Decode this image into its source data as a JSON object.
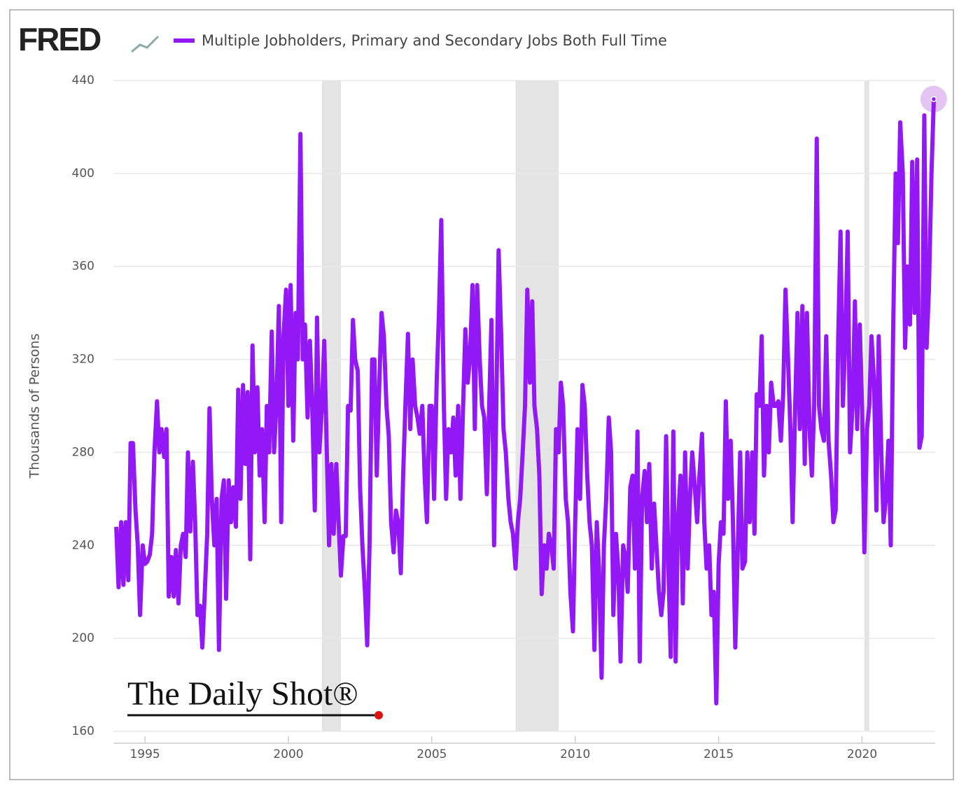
{
  "chart_data": {
    "type": "line",
    "logo": "FRED",
    "series": [
      {
        "name": "Multiple Jobholders, Primary and Secondary Jobs Both Full Time",
        "color": "#9218f5",
        "values": [
          248,
          222,
          250,
          223,
          250,
          225,
          284,
          284,
          255,
          240,
          210,
          240,
          232,
          233,
          236,
          245,
          280,
          302,
          280,
          290,
          278,
          290,
          218,
          235,
          218,
          238,
          215,
          240,
          245,
          235,
          280,
          246,
          276,
          250,
          210,
          214,
          196,
          218,
          245,
          299,
          260,
          240,
          260,
          195,
          260,
          268,
          217,
          268,
          250,
          265,
          248,
          307,
          260,
          309,
          275,
          306,
          234,
          326,
          280,
          308,
          270,
          290,
          250,
          300,
          280,
          332,
          280,
          300,
          343,
          250,
          330,
          350,
          300,
          352,
          285,
          340,
          320,
          417,
          320,
          335,
          295,
          328,
          300,
          255,
          338,
          280,
          300,
          328,
          285,
          240,
          275,
          245,
          275,
          250,
          227,
          244,
          244,
          300,
          298,
          337,
          320,
          315,
          265,
          240,
          220,
          197,
          240,
          320,
          320,
          270,
          310,
          340,
          330,
          300,
          287,
          250,
          237,
          255,
          250,
          228,
          270,
          300,
          331,
          290,
          320,
          300,
          295,
          288,
          300,
          270,
          250,
          300,
          300,
          260,
          310,
          340,
          380,
          300,
          260,
          290,
          280,
          295,
          270,
          300,
          260,
          295,
          333,
          310,
          320,
          352,
          290,
          352,
          320,
          300,
          295,
          262,
          300,
          337,
          240,
          300,
          367,
          330,
          290,
          280,
          260,
          250,
          245,
          230,
          250,
          260,
          280,
          300,
          350,
          310,
          345,
          300,
          290,
          270,
          219,
          240,
          230,
          245,
          240,
          230,
          290,
          280,
          310,
          300,
          260,
          250,
          220,
          203,
          250,
          290,
          260,
          309,
          300,
          270,
          250,
          240,
          195,
          250,
          230,
          183,
          240,
          260,
          295,
          280,
          210,
          245,
          230,
          190,
          240,
          235,
          220,
          265,
          270,
          230,
          289,
          190,
          260,
          272,
          250,
          275,
          230,
          258,
          240,
          220,
          210,
          220,
          287,
          230,
          192,
          289,
          190,
          250,
          270,
          215,
          280,
          230,
          260,
          280,
          265,
          250,
          270,
          288,
          250,
          230,
          240,
          210,
          220,
          172,
          232,
          250,
          245,
          302,
          260,
          285,
          250,
          196,
          240,
          280,
          230,
          233,
          280,
          250,
          280,
          245,
          305,
          300,
          330,
          270,
          300,
          280,
          310,
          300,
          300,
          302,
          285,
          305,
          350,
          320,
          290,
          250,
          300,
          340,
          290,
          343,
          275,
          340,
          290,
          270,
          300,
          415,
          300,
          290,
          285,
          330,
          285,
          270,
          250,
          255,
          330,
          375,
          300,
          330,
          375,
          280,
          300,
          345,
          290,
          335,
          300,
          237,
          290,
          300,
          330,
          310,
          255,
          330,
          280,
          250,
          260,
          285,
          240,
          330,
          400,
          370,
          422,
          400,
          325,
          360,
          335,
          405,
          340,
          406,
          282,
          287,
          425,
          325,
          350,
          400,
          432
        ]
      }
    ],
    "x": [
      1994,
      1994.08,
      1994.17,
      1994.25,
      1994.33,
      1994.42,
      1994.5,
      1994.58,
      1994.67,
      1994.75,
      1994.83,
      1994.92,
      1995,
      1995.08,
      1995.17,
      1995.25,
      1995.33,
      1995.42,
      1995.5,
      1995.58,
      1995.67,
      1995.75,
      1995.83,
      1995.92,
      1996,
      1996.08,
      1996.17,
      1996.25,
      1996.33,
      1996.42,
      1996.5,
      1996.58,
      1996.67,
      1996.75,
      1996.83,
      1996.92,
      1997,
      1997.08,
      1997.17,
      1997.25,
      1997.33,
      1997.42,
      1997.5,
      1997.58,
      1997.67,
      1997.75,
      1997.83,
      1997.92,
      1998,
      1998.08,
      1998.17,
      1998.25,
      1998.33,
      1998.42,
      1998.5,
      1998.58,
      1998.67,
      1998.75,
      1998.83,
      1998.92,
      1999,
      1999.08,
      1999.17,
      1999.25,
      1999.33,
      1999.42,
      1999.5,
      1999.58,
      1999.67,
      1999.75,
      1999.83,
      1999.92,
      2000,
      2000.08,
      2000.17,
      2000.25,
      2000.33,
      2000.42,
      2000.5,
      2000.58,
      2000.67,
      2000.75,
      2000.83,
      2000.92,
      2001,
      2001.08,
      2001.17,
      2001.25,
      2001.33,
      2001.42,
      2001.5,
      2001.58,
      2001.67,
      2001.75,
      2001.83,
      2001.92,
      2002,
      2002.08,
      2002.17,
      2002.25,
      2002.33,
      2002.42,
      2002.5,
      2002.58,
      2002.67,
      2002.75,
      2002.83,
      2002.92,
      2003,
      2003.08,
      2003.17,
      2003.25,
      2003.33,
      2003.42,
      2003.5,
      2003.58,
      2003.67,
      2003.75,
      2003.83,
      2003.92,
      2004,
      2004.08,
      2004.17,
      2004.25,
      2004.33,
      2004.42,
      2004.5,
      2004.58,
      2004.67,
      2004.75,
      2004.83,
      2004.92,
      2005,
      2005.08,
      2005.17,
      2005.25,
      2005.33,
      2005.42,
      2005.5,
      2005.58,
      2005.67,
      2005.75,
      2005.83,
      2005.92,
      2006,
      2006.08,
      2006.17,
      2006.25,
      2006.33,
      2006.42,
      2006.5,
      2006.58,
      2006.67,
      2006.75,
      2006.83,
      2006.92,
      2007,
      2007.08,
      2007.17,
      2007.25,
      2007.33,
      2007.42,
      2007.5,
      2007.58,
      2007.67,
      2007.75,
      2007.83,
      2007.92,
      2008,
      2008.08,
      2008.17,
      2008.25,
      2008.33,
      2008.42,
      2008.5,
      2008.58,
      2008.67,
      2008.75,
      2008.83,
      2008.92,
      2009,
      2009.08,
      2009.17,
      2009.25,
      2009.33,
      2009.42,
      2009.5,
      2009.58,
      2009.67,
      2009.75,
      2009.83,
      2009.92,
      2010,
      2010.08,
      2010.17,
      2010.25,
      2010.33,
      2010.42,
      2010.5,
      2010.58,
      2010.67,
      2010.75,
      2010.83,
      2010.92,
      2011,
      2011.08,
      2011.17,
      2011.25,
      2011.33,
      2011.42,
      2011.5,
      2011.58,
      2011.67,
      2011.75,
      2011.83,
      2011.92,
      2012,
      2012.08,
      2012.17,
      2012.25,
      2012.33,
      2012.42,
      2012.5,
      2012.58,
      2012.67,
      2012.75,
      2012.83,
      2012.92,
      2013,
      2013.08,
      2013.17,
      2013.25,
      2013.33,
      2013.42,
      2013.5,
      2013.58,
      2013.67,
      2013.75,
      2013.83,
      2013.92,
      2014,
      2014.08,
      2014.17,
      2014.25,
      2014.33,
      2014.42,
      2014.5,
      2014.58,
      2014.67,
      2014.75,
      2014.83,
      2014.92,
      2015,
      2015.08,
      2015.17,
      2015.25,
      2015.33,
      2015.42,
      2015.5,
      2015.58,
      2015.67,
      2015.75,
      2015.83,
      2015.92,
      2016,
      2016.08,
      2016.17,
      2016.25,
      2016.33,
      2016.42,
      2016.5,
      2016.58,
      2016.67,
      2016.75,
      2016.83,
      2016.92,
      2017,
      2017.08,
      2017.17,
      2017.25,
      2017.33,
      2017.42,
      2017.5,
      2017.58,
      2017.67,
      2017.75,
      2017.83,
      2017.92,
      2018,
      2018.08,
      2018.17,
      2018.25,
      2018.33,
      2018.42,
      2018.5,
      2018.58,
      2018.67,
      2018.75,
      2018.83,
      2018.92,
      2019,
      2019.08,
      2019.17,
      2019.25,
      2019.33,
      2019.42,
      2019.5,
      2019.58,
      2019.67,
      2019.75,
      2019.83,
      2019.92,
      2020,
      2020.08,
      2020.17,
      2020.25,
      2020.33,
      2020.42,
      2020.5,
      2020.58,
      2020.67,
      2020.75,
      2020.83,
      2020.92,
      2021,
      2021.08,
      2021.17,
      2021.25,
      2021.33,
      2021.42,
      2021.5,
      2021.58,
      2021.67,
      2021.75,
      2021.83,
      2021.92,
      2022,
      2022.08,
      2022.17,
      2022.25,
      2022.33,
      2022.42,
      2022.5
    ],
    "xlim": [
      1993.9,
      2022.55
    ],
    "xticks": [
      1995,
      2000,
      2005,
      2010,
      2015,
      2020
    ],
    "ylim": [
      160,
      440
    ],
    "yticks": [
      160,
      200,
      240,
      280,
      320,
      360,
      400,
      440
    ],
    "ylabel": "Thousands of Persons",
    "recessions": [
      [
        2001.17,
        2001.83
      ],
      [
        2007.92,
        2009.42
      ],
      [
        2020.08,
        2020.25
      ]
    ],
    "grid": true,
    "watermark": "The Daily Shot®"
  }
}
